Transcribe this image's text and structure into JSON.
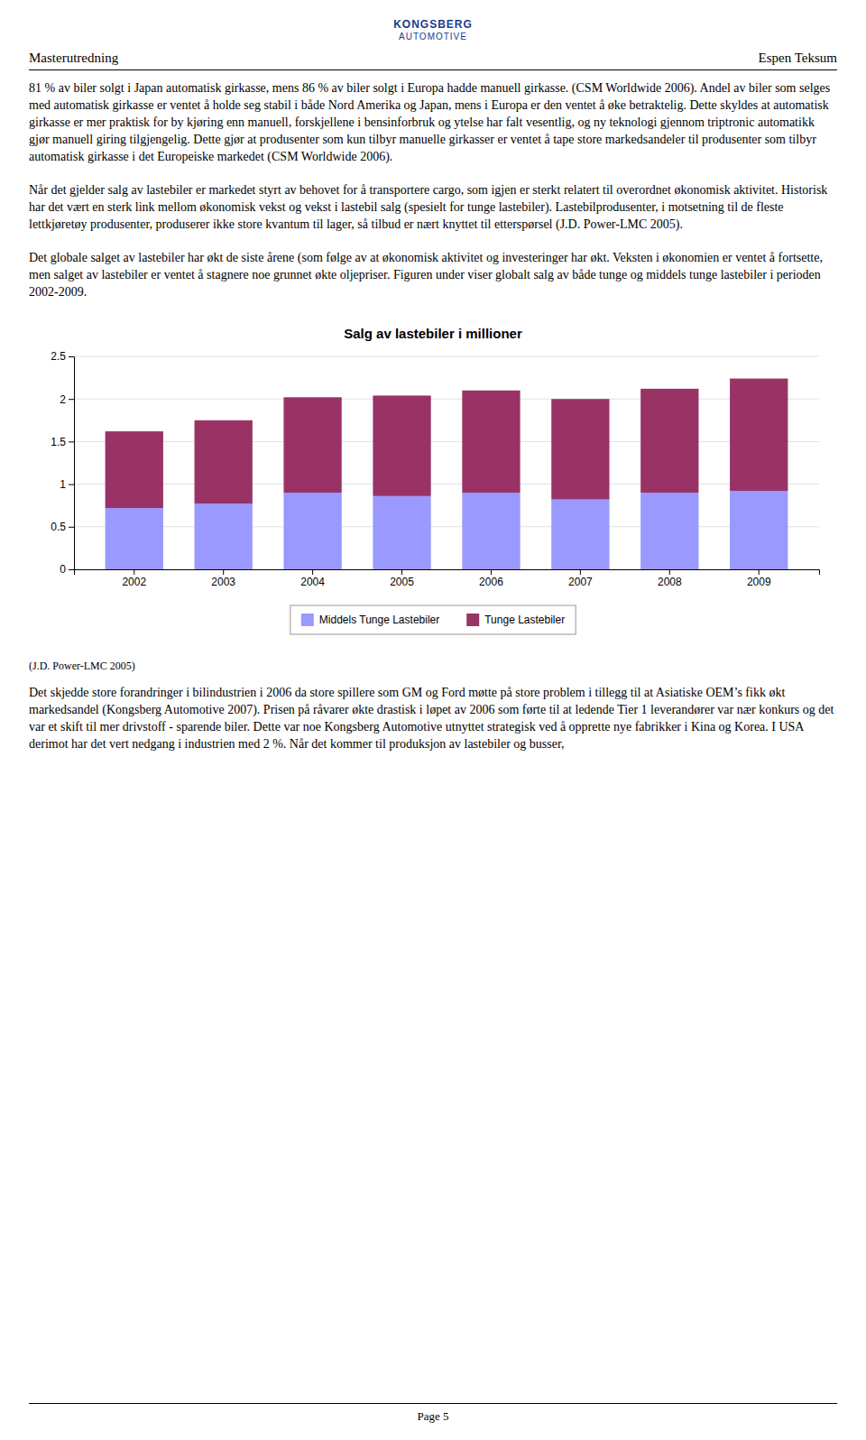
{
  "logo": {
    "top": "KONGSBERG",
    "bottom": "AUTOMOTIVE"
  },
  "header": {
    "left": "Masterutredning",
    "right": "Espen Teksum"
  },
  "paragraphs_before": [
    "81 % av biler solgt i Japan automatisk girkasse, mens 86 % av biler solgt i Europa hadde manuell girkasse. (CSM Worldwide 2006). Andel av biler som selges med automatisk girkasse er ventet å holde seg stabil i både Nord Amerika og Japan, mens i Europa er den ventet å øke betraktelig. Dette skyldes at automatisk girkasse er mer praktisk for by kjøring enn manuell, forskjellene i bensinforbruk og ytelse har falt vesentlig, og ny teknologi gjennom triptronic automatikk gjør manuell giring tilgjengelig. Dette gjør at produsenter som kun tilbyr manuelle girkasser er ventet å tape store markedsandeler til produsenter som tilbyr automatisk girkasse i det Europeiske markedet (CSM Worldwide 2006).",
    "Når det gjelder salg av lastebiler er markedet styrt av behovet for å transportere cargo, som igjen er sterkt relatert til overordnet økonomisk aktivitet. Historisk har det vært en sterk link mellom økonomisk vekst og vekst i lastebil salg (spesielt for tunge lastebiler). Lastebilprodusenter, i motsetning til de fleste lettkjøretøy produsenter, produserer ikke store kvantum til lager, så tilbud er nært knyttet til etterspørsel (J.D. Power-LMC 2005).",
    "Det globale salget av lastebiler har økt de siste årene (som følge av at økonomisk aktivitet og investeringer har økt. Veksten i økonomien er ventet å fortsette, men salget av lastebiler er ventet å stagnere noe grunnet økte oljepriser. Figuren under viser globalt salg av både tunge og middels tunge lastebiler i perioden 2002-2009."
  ],
  "chart_data": {
    "type": "bar",
    "title": "Salg av lastebiler i millioner",
    "categories": [
      "2002",
      "2003",
      "2004",
      "2005",
      "2006",
      "2007",
      "2008",
      "2009"
    ],
    "series": [
      {
        "name": "Middels Tunge Lastebiler",
        "color": "#9999FF",
        "values": [
          0.72,
          0.77,
          0.9,
          0.86,
          0.9,
          0.82,
          0.9,
          0.92
        ]
      },
      {
        "name": "Tunge Lastebiler",
        "color": "#993366",
        "values": [
          0.9,
          0.98,
          1.12,
          1.18,
          1.2,
          1.18,
          1.22,
          1.32
        ]
      }
    ],
    "stacked": true,
    "ylim": [
      0,
      2.5
    ],
    "yticks": [
      0,
      0.5,
      1,
      1.5,
      2,
      2.5
    ],
    "grid": true,
    "legend": "bottom"
  },
  "caption": "(J.D. Power-LMC 2005)",
  "paragraphs_after": [
    "Det skjedde store forandringer i bilindustrien i 2006 da store spillere som GM og Ford møtte på store problem i tillegg til at Asiatiske OEM’s fikk økt markedsandel (Kongsberg Automotive 2007). Prisen på råvarer økte drastisk i løpet av 2006 som førte til at ledende Tier 1 leverandører var nær konkurs og det var et skift til mer drivstoff - sparende biler. Dette var noe Kongsberg Automotive utnyttet strategisk ved å opprette nye fabrikker i Kina og Korea. I USA derimot har det vert nedgang i industrien med 2 %. Når det kommer til produksjon av lastebiler og busser,"
  ],
  "page_number": "Page 5"
}
